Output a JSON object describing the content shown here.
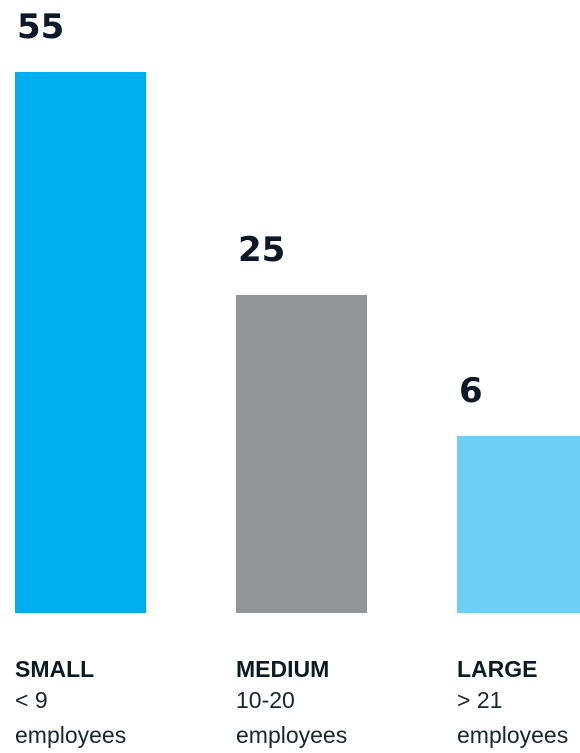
{
  "chart_data": {
    "type": "bar",
    "title": "",
    "xlabel": "",
    "ylabel": "",
    "categories": [
      "SMALL",
      "MEDIUM",
      "LARGE"
    ],
    "category_ranges": [
      "< 9",
      "10-20",
      "> 21"
    ],
    "category_unit": "employees",
    "values": [
      55,
      25,
      6
    ],
    "value_labels": [
      "55",
      "25",
      "6"
    ],
    "colors": [
      "#00aeef",
      "#939598",
      "#6dcff6"
    ],
    "ylim": [
      0,
      55
    ],
    "grid": false
  }
}
